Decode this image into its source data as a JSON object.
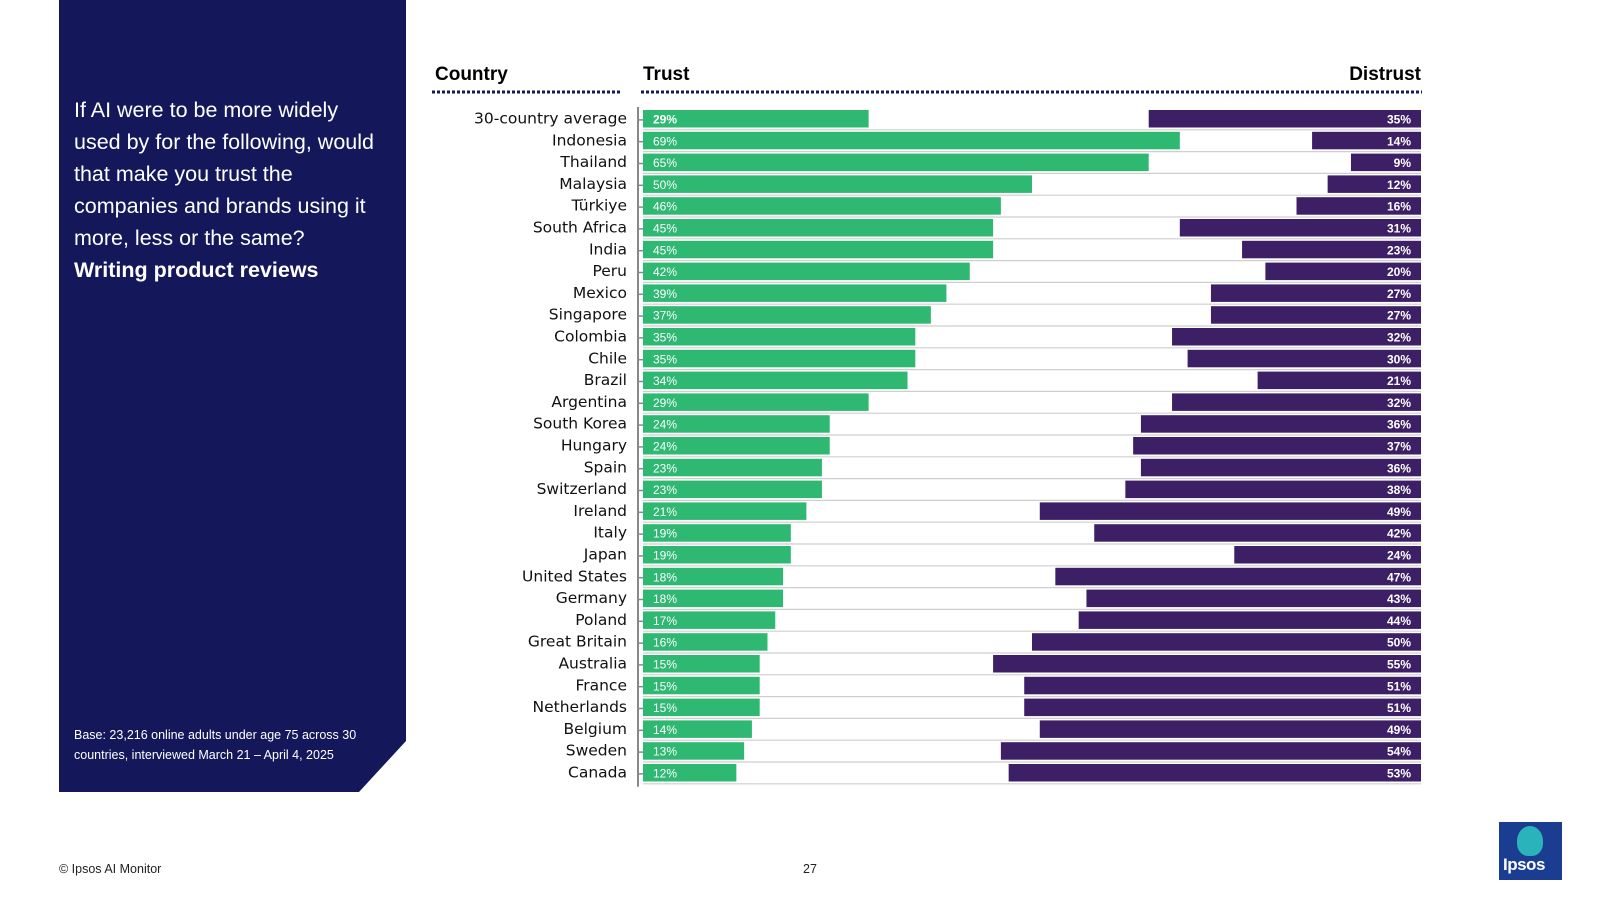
{
  "panel": {
    "question": "If AI were to be more widely used by for the following, would that make you trust the companies and brands using it more, less or the same?",
    "topic": "Writing product reviews",
    "base_note": "Base: 23,216 online adults under age 75 across 30 countries, interviewed March 21 – April 4, 2025"
  },
  "footer": {
    "copyright": "© Ipsos AI Monitor",
    "page_number": "27",
    "logo_text": "Ipsos"
  },
  "colors": {
    "panel": "#14185a",
    "trust": "#2eb872",
    "distrust": "#3d1f66"
  },
  "chart_data": {
    "type": "bar",
    "orientation": "horizontal-diverging",
    "headers": {
      "country": "Country",
      "trust": "Trust",
      "distrust": "Distrust"
    },
    "categories": [
      "30-country average",
      "Indonesia",
      "Thailand",
      "Malaysia",
      "Türkiye",
      "South Africa",
      "India",
      "Peru",
      "Mexico",
      "Singapore",
      "Colombia",
      "Chile",
      "Brazil",
      "Argentina",
      "South Korea",
      "Hungary",
      "Spain",
      "Switzerland",
      "Ireland",
      "Italy",
      "Japan",
      "United States",
      "Germany",
      "Poland",
      "Great Britain",
      "Australia",
      "France",
      "Netherlands",
      "Belgium",
      "Sweden",
      "Canada"
    ],
    "series": [
      {
        "name": "Trust",
        "values": [
          29,
          69,
          65,
          50,
          46,
          45,
          45,
          42,
          39,
          37,
          35,
          35,
          34,
          29,
          24,
          24,
          23,
          23,
          21,
          19,
          19,
          18,
          18,
          17,
          16,
          15,
          15,
          15,
          14,
          13,
          12
        ]
      },
      {
        "name": "Distrust",
        "values": [
          35,
          14,
          9,
          12,
          16,
          31,
          23,
          20,
          27,
          27,
          32,
          30,
          21,
          32,
          36,
          37,
          36,
          38,
          49,
          42,
          24,
          47,
          43,
          44,
          50,
          55,
          51,
          51,
          49,
          54,
          53
        ]
      }
    ],
    "value_suffix": "%",
    "xlim": [
      0,
      100
    ]
  }
}
